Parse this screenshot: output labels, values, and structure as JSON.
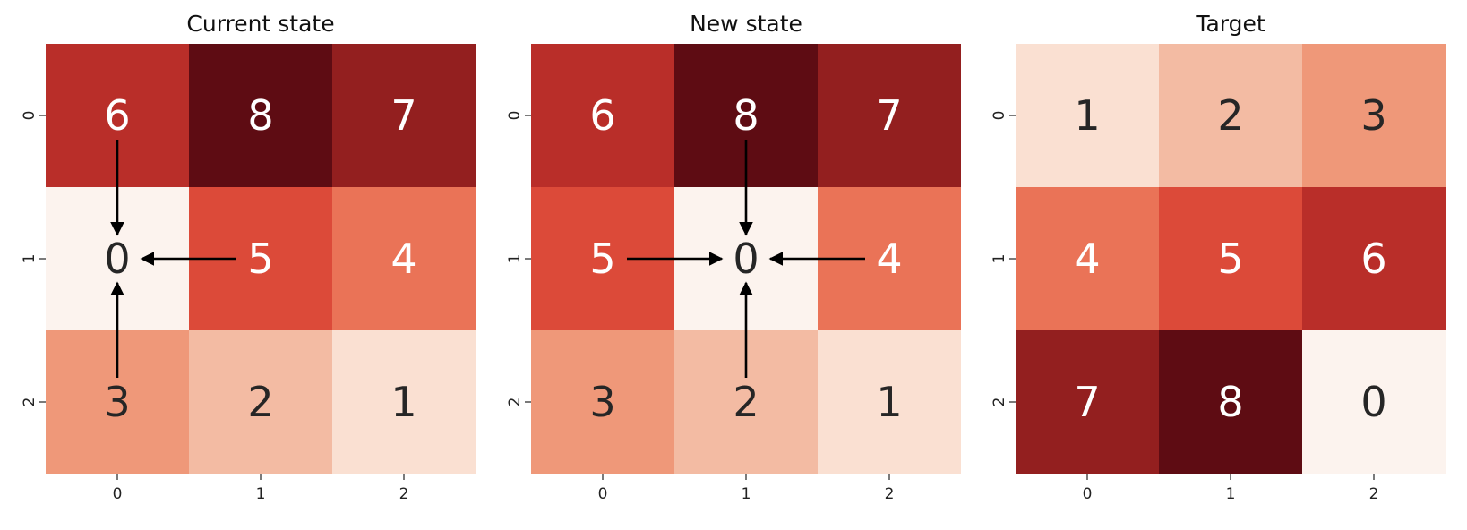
{
  "chart_data": [
    {
      "type": "heatmap",
      "title": "Current state",
      "x_ticks": [
        "0",
        "1",
        "2"
      ],
      "y_ticks": [
        "0",
        "1",
        "2"
      ],
      "values": [
        [
          6,
          8,
          7
        ],
        [
          0,
          5,
          4
        ],
        [
          3,
          2,
          1
        ]
      ],
      "arrows": [
        {
          "from": [
            0,
            0
          ],
          "to": [
            1,
            0
          ]
        },
        {
          "from": [
            1,
            1
          ],
          "to": [
            1,
            0
          ]
        },
        {
          "from": [
            2,
            0
          ],
          "to": [
            1,
            0
          ]
        }
      ]
    },
    {
      "type": "heatmap",
      "title": "New state",
      "x_ticks": [
        "0",
        "1",
        "2"
      ],
      "y_ticks": [
        "0",
        "1",
        "2"
      ],
      "values": [
        [
          6,
          8,
          7
        ],
        [
          5,
          0,
          4
        ],
        [
          3,
          2,
          1
        ]
      ],
      "arrows": [
        {
          "from": [
            0,
            1
          ],
          "to": [
            1,
            1
          ]
        },
        {
          "from": [
            1,
            0
          ],
          "to": [
            1,
            1
          ]
        },
        {
          "from": [
            1,
            2
          ],
          "to": [
            1,
            1
          ]
        },
        {
          "from": [
            2,
            1
          ],
          "to": [
            1,
            1
          ]
        }
      ]
    },
    {
      "type": "heatmap",
      "title": "Target",
      "x_ticks": [
        "0",
        "1",
        "2"
      ],
      "y_ticks": [
        "0",
        "1",
        "2"
      ],
      "values": [
        [
          1,
          2,
          3
        ],
        [
          4,
          5,
          6
        ],
        [
          7,
          8,
          0
        ]
      ],
      "arrows": []
    }
  ],
  "colormap": {
    "name": "Reds",
    "colors": [
      "#fcf3ee",
      "#fae0d2",
      "#f3bba3",
      "#ef9879",
      "#ea7357",
      "#dc4a39",
      "#b92e29",
      "#931f1f",
      "#5e0c13"
    ]
  },
  "text_colors": {
    "dark": "#262626",
    "light": "#ffffff"
  },
  "arrow_color": "#000000"
}
